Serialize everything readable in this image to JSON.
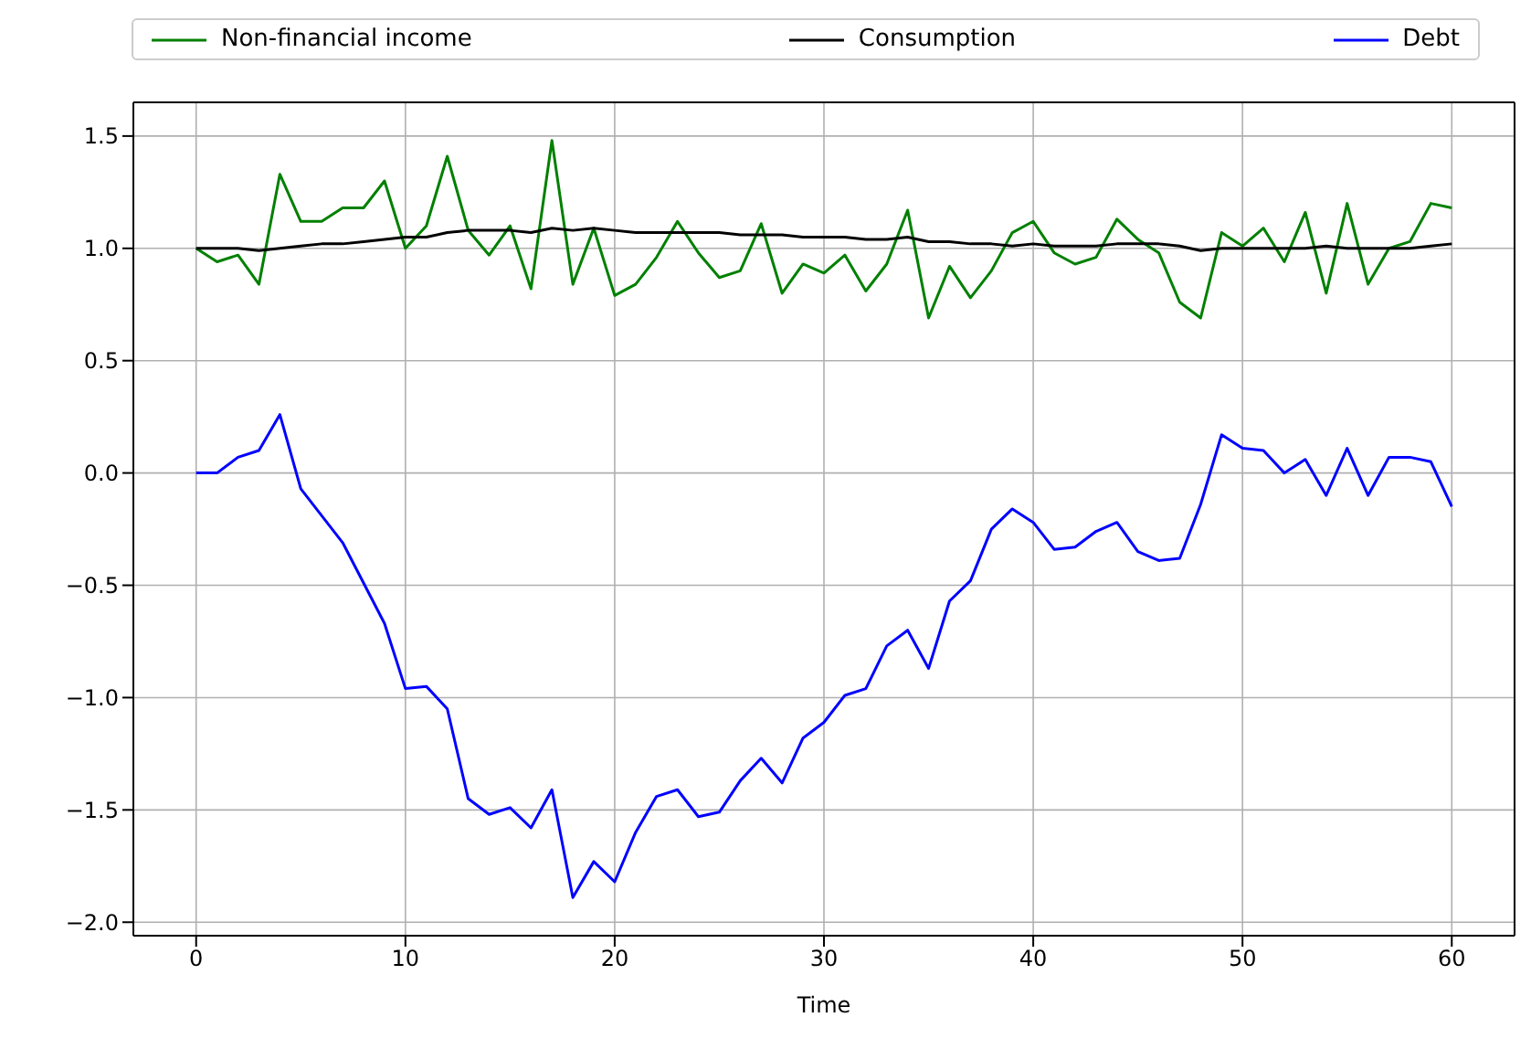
{
  "chart_data": {
    "type": "line",
    "xlabel": "Time",
    "x": [
      0,
      1,
      2,
      3,
      4,
      5,
      6,
      7,
      8,
      9,
      10,
      11,
      12,
      13,
      14,
      15,
      16,
      17,
      18,
      19,
      20,
      21,
      22,
      23,
      24,
      25,
      26,
      27,
      28,
      29,
      30,
      31,
      32,
      33,
      34,
      35,
      36,
      37,
      38,
      39,
      40,
      41,
      42,
      43,
      44,
      45,
      46,
      47,
      48,
      49,
      50,
      51,
      52,
      53,
      54,
      55,
      56,
      57,
      58,
      59,
      60
    ],
    "series": [
      {
        "name": "Non-financial income",
        "color": "#008000",
        "values": [
          1.0,
          0.94,
          0.97,
          0.84,
          1.33,
          1.12,
          1.12,
          1.18,
          1.18,
          1.3,
          1.0,
          1.1,
          1.41,
          1.08,
          0.97,
          1.1,
          0.82,
          1.48,
          0.84,
          1.09,
          0.79,
          0.84,
          0.96,
          1.12,
          0.98,
          0.87,
          0.9,
          1.11,
          0.8,
          0.93,
          0.89,
          0.97,
          0.81,
          0.93,
          1.17,
          0.69,
          0.92,
          0.78,
          0.9,
          1.07,
          1.12,
          0.98,
          0.93,
          0.96,
          1.13,
          1.04,
          0.98,
          0.76,
          0.69,
          1.07,
          1.01,
          1.09,
          0.94,
          1.16,
          0.8,
          1.2,
          0.84,
          1.0,
          1.03,
          1.2,
          1.18
        ]
      },
      {
        "name": "Consumption",
        "color": "#000000",
        "values": [
          1.0,
          1.0,
          1.0,
          0.99,
          1.0,
          1.01,
          1.02,
          1.02,
          1.03,
          1.04,
          1.05,
          1.05,
          1.07,
          1.08,
          1.08,
          1.08,
          1.07,
          1.09,
          1.08,
          1.09,
          1.08,
          1.07,
          1.07,
          1.07,
          1.07,
          1.07,
          1.06,
          1.06,
          1.06,
          1.05,
          1.05,
          1.05,
          1.04,
          1.04,
          1.05,
          1.03,
          1.03,
          1.02,
          1.02,
          1.01,
          1.02,
          1.01,
          1.01,
          1.01,
          1.02,
          1.02,
          1.02,
          1.01,
          0.99,
          1.0,
          1.0,
          1.0,
          1.0,
          1.0,
          1.01,
          1.0,
          1.0,
          1.0,
          1.0,
          1.01,
          1.02
        ]
      },
      {
        "name": "Debt",
        "color": "#0000ff",
        "values": [
          0,
          0,
          0.07,
          0.1,
          0.26,
          -0.07,
          -0.19,
          -0.31,
          -0.49,
          -0.67,
          -0.96,
          -0.95,
          -1.05,
          -1.45,
          -1.52,
          -1.49,
          -1.58,
          -1.41,
          -1.89,
          -1.73,
          -1.82,
          -1.6,
          -1.44,
          -1.41,
          -1.53,
          -1.51,
          -1.37,
          -1.27,
          -1.38,
          -1.18,
          -1.11,
          -0.99,
          -0.96,
          -0.77,
          -0.7,
          -0.87,
          -0.57,
          -0.48,
          -0.25,
          -0.16,
          -0.22,
          -0.34,
          -0.33,
          -0.26,
          -0.22,
          -0.35,
          -0.39,
          -0.38,
          -0.14,
          0.17,
          0.11,
          0.1,
          0.0,
          0.06,
          -0.1,
          0.11,
          -0.1,
          0.07,
          0.07,
          0.05,
          -0.15
        ]
      }
    ],
    "xlim": [
      -3,
      63
    ],
    "xticks": [
      0,
      10,
      20,
      30,
      40,
      50,
      60
    ],
    "ylim": [
      -2.06,
      1.65
    ],
    "yticks": [
      {
        "value": -2,
        "label": "−2.0"
      },
      {
        "value": -1.5,
        "label": "−1.5"
      },
      {
        "value": -1,
        "label": "−1.0"
      },
      {
        "value": -0.5,
        "label": "−0.5"
      },
      {
        "value": 0,
        "label": "0.0"
      },
      {
        "value": 0.5,
        "label": "0.5"
      },
      {
        "value": 1,
        "label": "1.0"
      },
      {
        "value": 1.5,
        "label": "1.5"
      }
    ],
    "grid": true,
    "legend": "top",
    "marker": "none",
    "line_style": "solid"
  }
}
